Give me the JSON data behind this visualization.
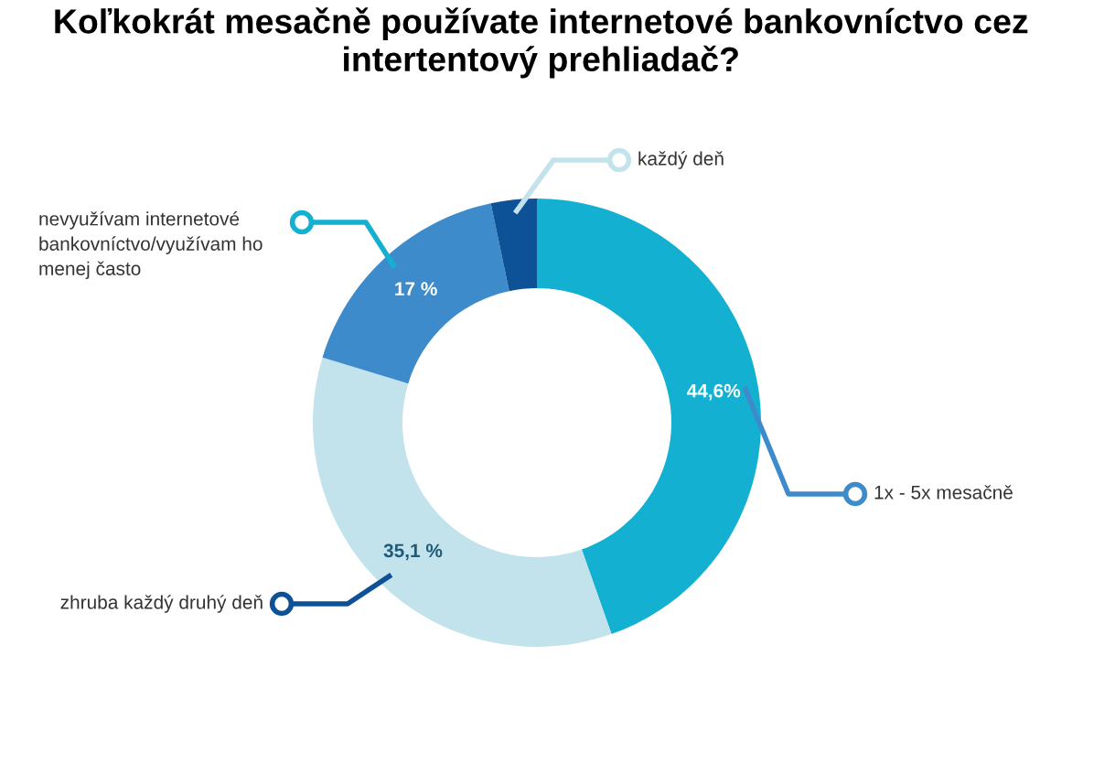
{
  "chart_data": {
    "type": "donut",
    "title": "Koľkokrát mesačně používate internetové bankovníctvo cez intertentový prehliadač?",
    "categories": [
      "1x - 5x mesačně",
      "zhruba každý druhý deň",
      "nevyužívam internetové bankovníctvo/využívam ho menej často",
      "každý deň"
    ],
    "values": [
      44.6,
      35.1,
      17,
      3.3
    ],
    "value_labels": [
      "44,6%",
      "35,1 %",
      "17 %",
      null
    ],
    "colors": [
      "#14b0d2",
      "#c2e3ec",
      "#3d8bcb",
      "#0d5196"
    ],
    "legend": false
  }
}
